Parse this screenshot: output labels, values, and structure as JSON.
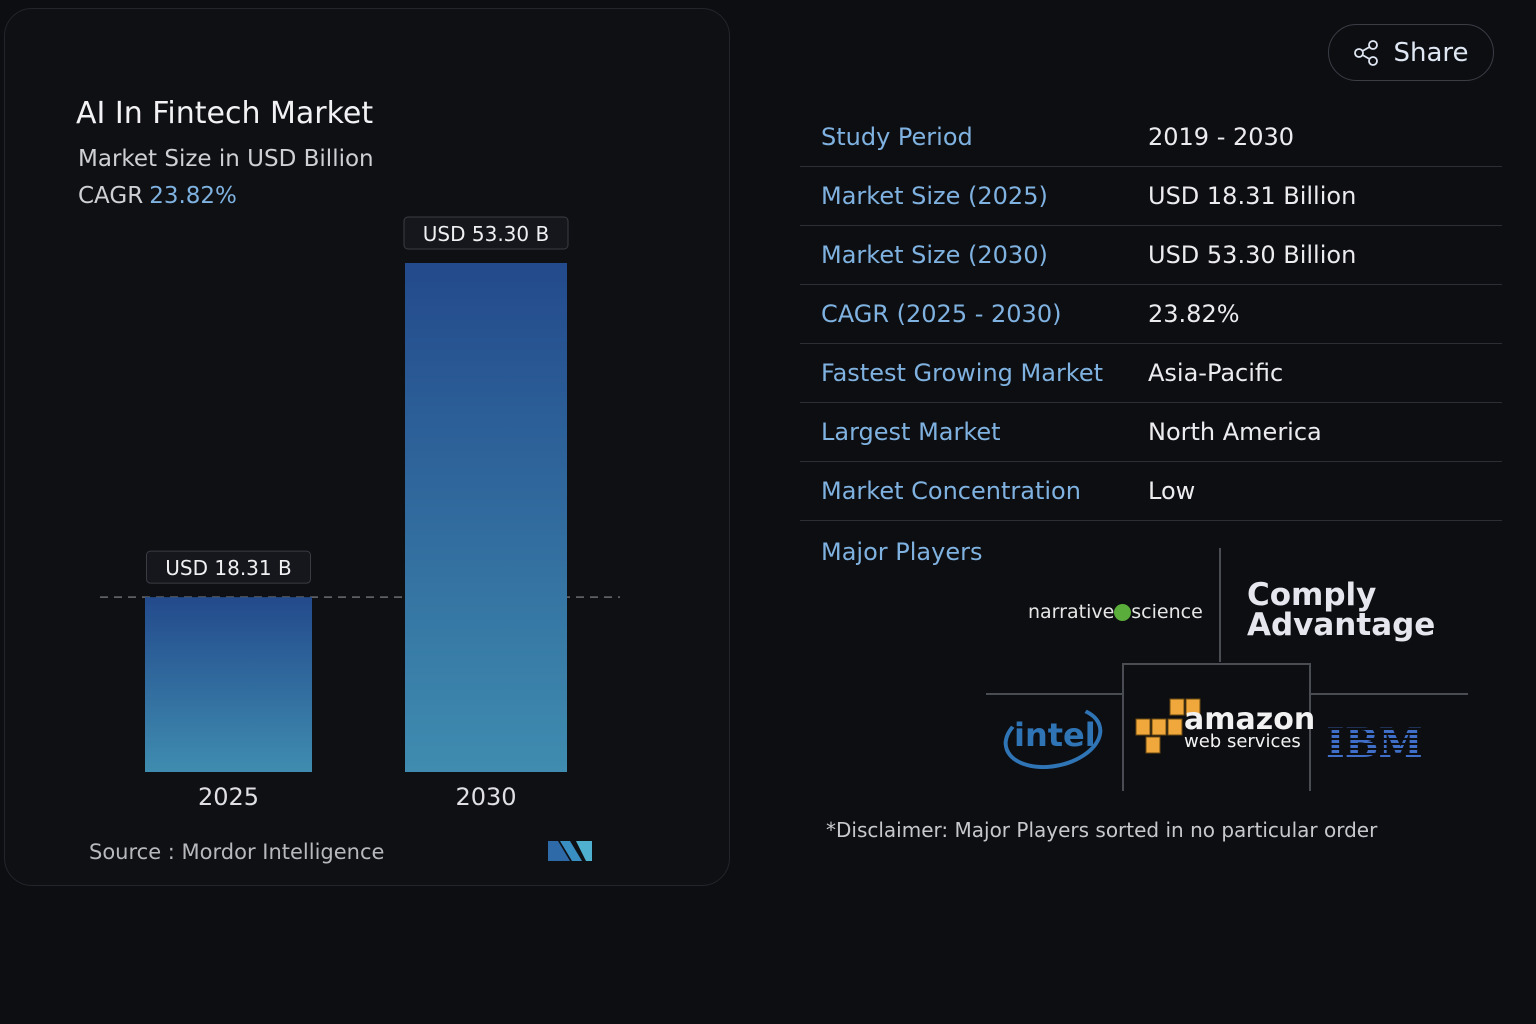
{
  "header": {
    "share_label": "Share",
    "share_icon": "share-icon"
  },
  "card": {
    "title": "AI In Fintech Market",
    "subtitle": "Market Size in USD Billion",
    "cagr_label": "CAGR",
    "cagr_value": "23.82%",
    "source": "Source :  Mordor Intelligence",
    "logo_text": "Mordor Intelligence"
  },
  "chart_data": {
    "type": "bar",
    "categories": [
      "2025",
      "2030"
    ],
    "values": [
      18.31,
      53.3
    ],
    "data_labels": [
      "USD 18.31 B",
      "USD 53.30 B"
    ],
    "title": "AI In Fintech Market",
    "ylabel": "Market Size in USD Billion",
    "ylim": [
      0,
      53.3
    ],
    "grid": false,
    "bar_color_top": "#234a8c",
    "bar_color_bottom": "#3f8cb0"
  },
  "facts": [
    {
      "label": "Study Period",
      "value": "2019 - 2030"
    },
    {
      "label": "Market Size (2025)",
      "value": "USD 18.31 Billion"
    },
    {
      "label": "Market Size (2030)",
      "value": "USD 53.30 Billion"
    },
    {
      "label": "CAGR (2025 - 2030)",
      "value": "23.82%"
    },
    {
      "label": "Fastest Growing Market",
      "value": "Asia-Pacific"
    },
    {
      "label": "Largest Market",
      "value": "North America"
    },
    {
      "label": "Market Concentration",
      "value": "Low"
    }
  ],
  "players": {
    "label": "Major Players",
    "logos": [
      "narrative science",
      "Comply Advantage",
      "intel",
      "amazon web services",
      "IBM"
    ],
    "disclaimer": "*Disclaimer: Major Players sorted in no particular order"
  }
}
